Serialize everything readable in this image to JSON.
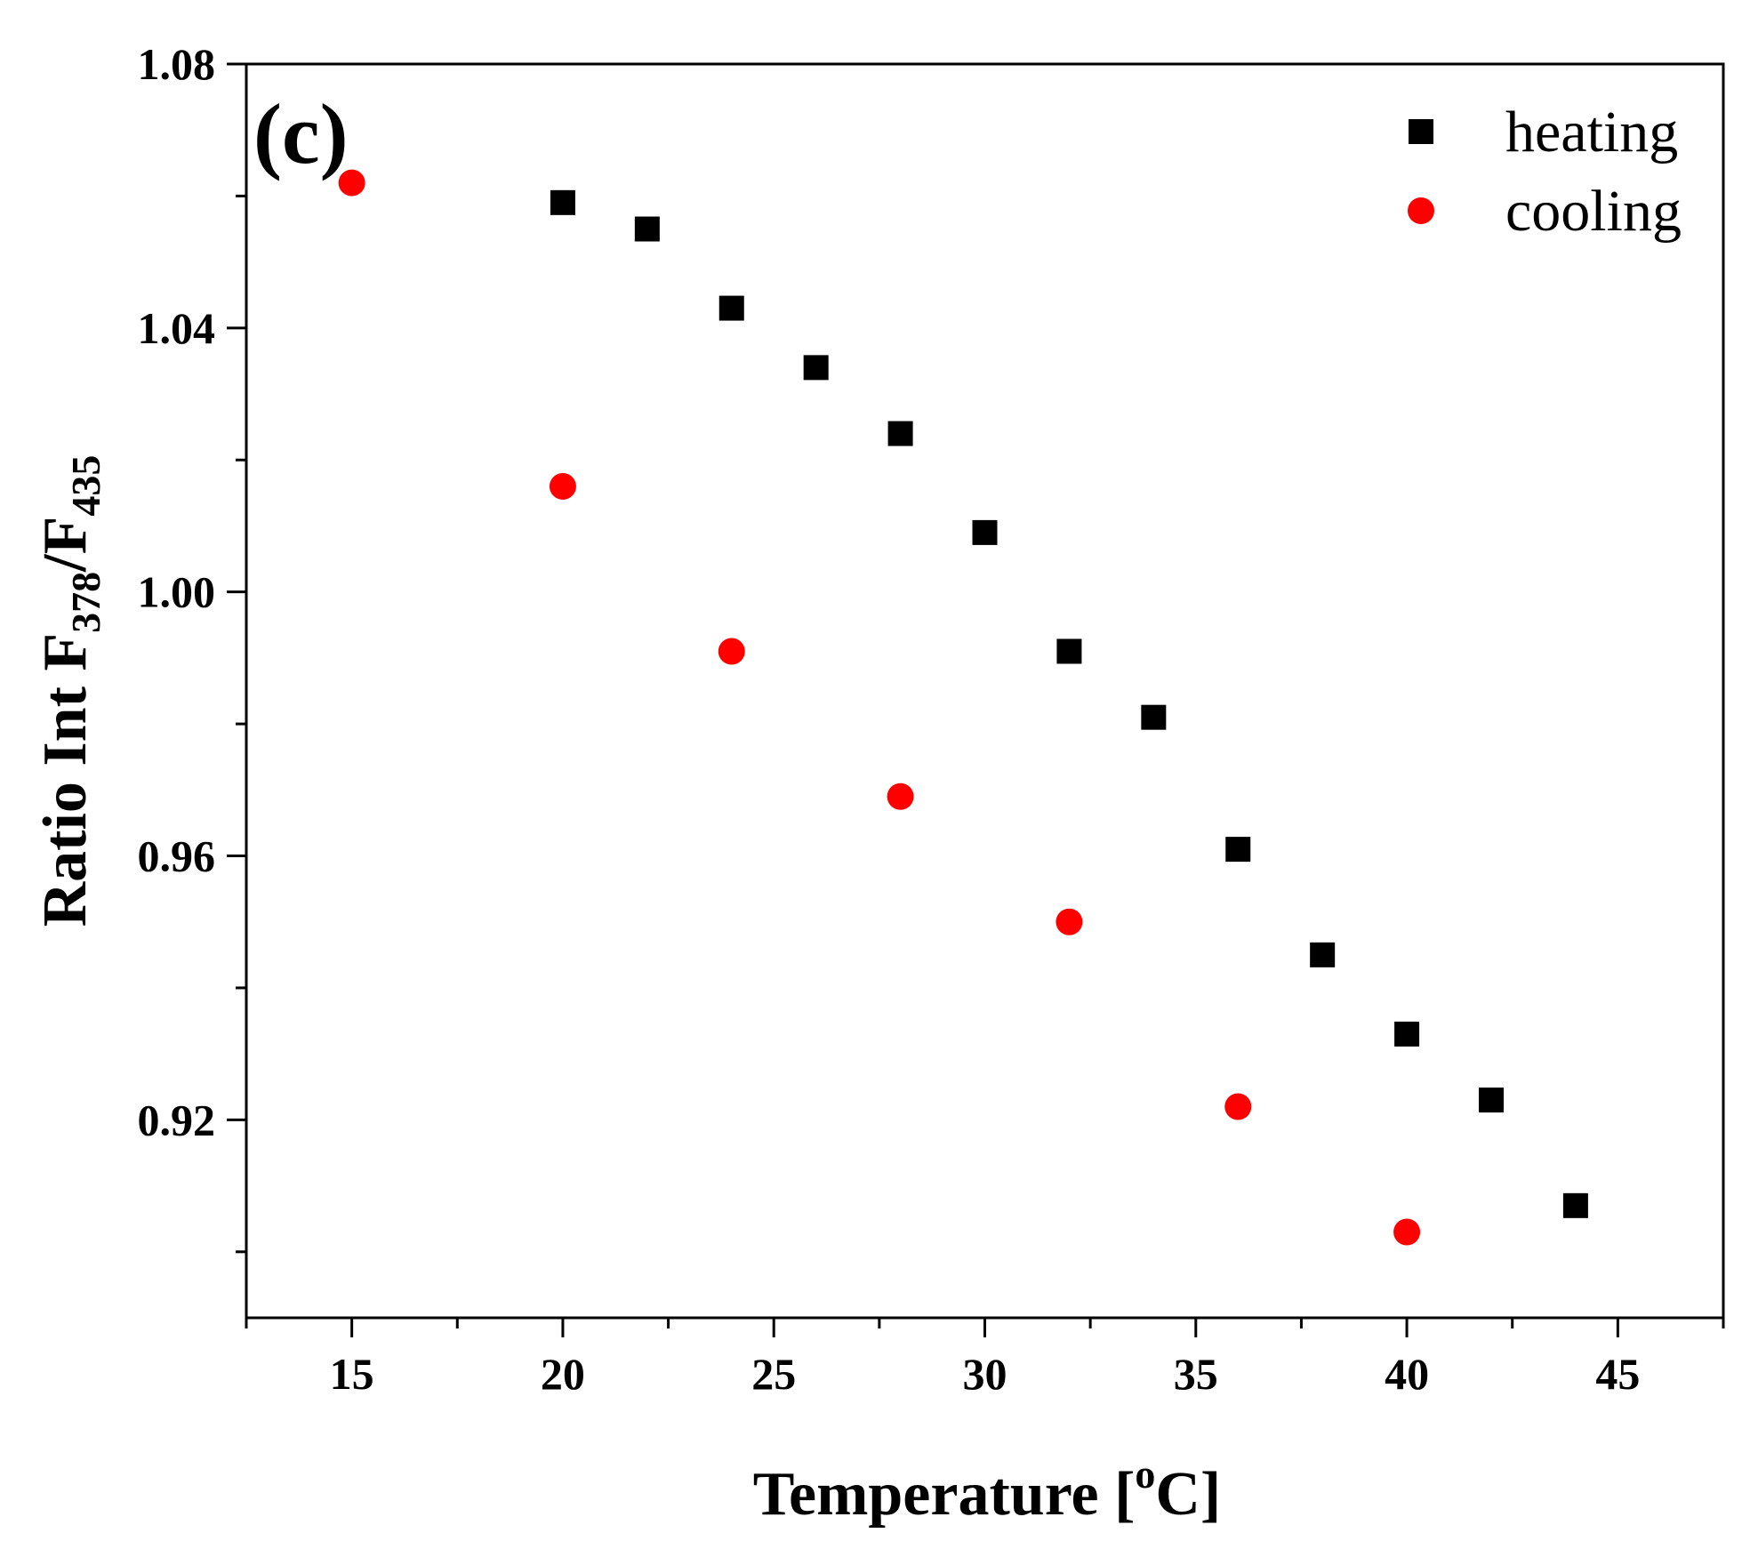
{
  "chart_data": {
    "type": "scatter",
    "panel_label": "(c)",
    "title": "",
    "xlabel": {
      "prefix": "Temperature [",
      "sup": "o",
      "suffix": "C]"
    },
    "ylabel": {
      "prefix": "Ratio Int F",
      "sub1": "378",
      "mid": "/F",
      "sub2": "435"
    },
    "xlim": [
      12.5,
      47.5
    ],
    "ylim": [
      0.89,
      1.08
    ],
    "xticks": [
      15,
      20,
      25,
      30,
      35,
      40,
      45
    ],
    "xtick_labels": [
      "15",
      "20",
      "25",
      "30",
      "35",
      "40",
      "45"
    ],
    "yticks": [
      0.92,
      0.96,
      1.0,
      1.04,
      1.08
    ],
    "ytick_labels": [
      "0.92",
      "0.96",
      "1.00",
      "1.04",
      "1.08"
    ],
    "legend_position": "top-right",
    "series": [
      {
        "name": "heating",
        "marker": "square",
        "color": "#000000",
        "x": [
          20,
          22,
          24,
          26,
          28,
          30,
          32,
          34,
          36,
          38,
          40,
          42,
          44
        ],
        "y": [
          1.059,
          1.055,
          1.043,
          1.034,
          1.024,
          1.009,
          0.991,
          0.981,
          0.961,
          0.945,
          0.933,
          0.923,
          0.907
        ]
      },
      {
        "name": "cooling",
        "marker": "circle",
        "color": "#ff0000",
        "x": [
          15,
          20,
          24,
          28,
          32,
          36,
          40
        ],
        "y": [
          1.062,
          1.016,
          0.991,
          0.969,
          0.95,
          0.922,
          0.903
        ]
      }
    ]
  }
}
